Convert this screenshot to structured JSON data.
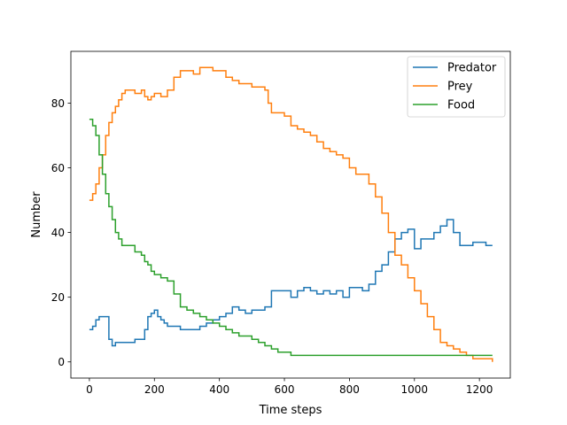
{
  "chart_data": {
    "type": "line",
    "xlabel": "Time steps",
    "ylabel": "Number",
    "xlim": [
      -57,
      1295
    ],
    "ylim": [
      -5,
      96
    ],
    "xticks": [
      0,
      200,
      400,
      600,
      800,
      1000,
      1200
    ],
    "yticks": [
      0,
      20,
      40,
      60,
      80
    ],
    "legend_position": "top-right",
    "series": [
      {
        "name": "Predator",
        "color": "#1f77b4",
        "x": [
          0,
          10,
          20,
          30,
          40,
          60,
          70,
          80,
          100,
          120,
          140,
          160,
          170,
          180,
          190,
          200,
          210,
          220,
          230,
          240,
          250,
          260,
          280,
          300,
          320,
          340,
          360,
          380,
          400,
          420,
          440,
          460,
          480,
          500,
          520,
          540,
          560,
          580,
          600,
          620,
          640,
          660,
          680,
          700,
          720,
          740,
          760,
          780,
          800,
          820,
          840,
          860,
          880,
          900,
          920,
          940,
          960,
          980,
          1000,
          1020,
          1040,
          1060,
          1080,
          1100,
          1120,
          1140,
          1160,
          1180,
          1200,
          1220,
          1240
        ],
        "y": [
          10,
          11,
          13,
          14,
          14,
          7,
          5,
          6,
          6,
          6,
          7,
          7,
          10,
          14,
          15,
          16,
          14,
          13,
          12,
          11,
          11,
          11,
          10,
          10,
          10,
          11,
          12,
          13,
          14,
          15,
          17,
          16,
          15,
          16,
          16,
          17,
          22,
          22,
          22,
          20,
          22,
          23,
          22,
          21,
          22,
          21,
          22,
          20,
          23,
          23,
          22,
          24,
          28,
          30,
          34,
          38,
          40,
          41,
          35,
          38,
          38,
          40,
          42,
          44,
          40,
          36,
          36,
          37,
          37,
          36,
          36
        ]
      },
      {
        "name": "Prey",
        "color": "#ff7f0e",
        "x": [
          0,
          10,
          20,
          30,
          40,
          50,
          60,
          70,
          80,
          90,
          100,
          110,
          120,
          130,
          140,
          150,
          160,
          170,
          180,
          190,
          200,
          220,
          240,
          260,
          280,
          300,
          320,
          340,
          360,
          380,
          400,
          420,
          440,
          460,
          480,
          500,
          520,
          540,
          550,
          560,
          580,
          600,
          620,
          640,
          660,
          680,
          700,
          720,
          740,
          760,
          780,
          800,
          820,
          840,
          860,
          880,
          900,
          920,
          940,
          960,
          980,
          1000,
          1020,
          1040,
          1060,
          1080,
          1100,
          1120,
          1140,
          1160,
          1180,
          1200,
          1220,
          1240
        ],
        "y": [
          50,
          52,
          55,
          60,
          64,
          70,
          74,
          77,
          79,
          81,
          83,
          84,
          84,
          84,
          83,
          83,
          84,
          82,
          81,
          82,
          83,
          82,
          84,
          88,
          90,
          90,
          89,
          91,
          91,
          90,
          90,
          88,
          87,
          86,
          86,
          85,
          85,
          84,
          80,
          77,
          77,
          76,
          73,
          72,
          71,
          70,
          68,
          66,
          65,
          64,
          63,
          60,
          58,
          58,
          55,
          51,
          46,
          40,
          33,
          30,
          26,
          22,
          18,
          14,
          10,
          6,
          5,
          4,
          3,
          2,
          1,
          1,
          1,
          0
        ]
      },
      {
        "name": "Food",
        "color": "#2ca02c",
        "x": [
          0,
          10,
          20,
          30,
          40,
          50,
          60,
          70,
          80,
          90,
          100,
          120,
          140,
          160,
          170,
          180,
          190,
          200,
          220,
          240,
          260,
          280,
          300,
          320,
          340,
          360,
          380,
          400,
          420,
          440,
          460,
          480,
          500,
          520,
          540,
          560,
          580,
          600,
          620,
          640,
          660,
          700,
          800,
          900,
          1000,
          1100,
          1200,
          1240
        ],
        "y": [
          75,
          73,
          70,
          64,
          58,
          52,
          48,
          44,
          40,
          38,
          36,
          36,
          34,
          33,
          31,
          30,
          28,
          27,
          26,
          25,
          21,
          17,
          16,
          15,
          14,
          13,
          12,
          11,
          10,
          9,
          8,
          8,
          7,
          6,
          5,
          4,
          3,
          3,
          2,
          2,
          2,
          2,
          2,
          2,
          2,
          2,
          2,
          2
        ]
      }
    ]
  }
}
